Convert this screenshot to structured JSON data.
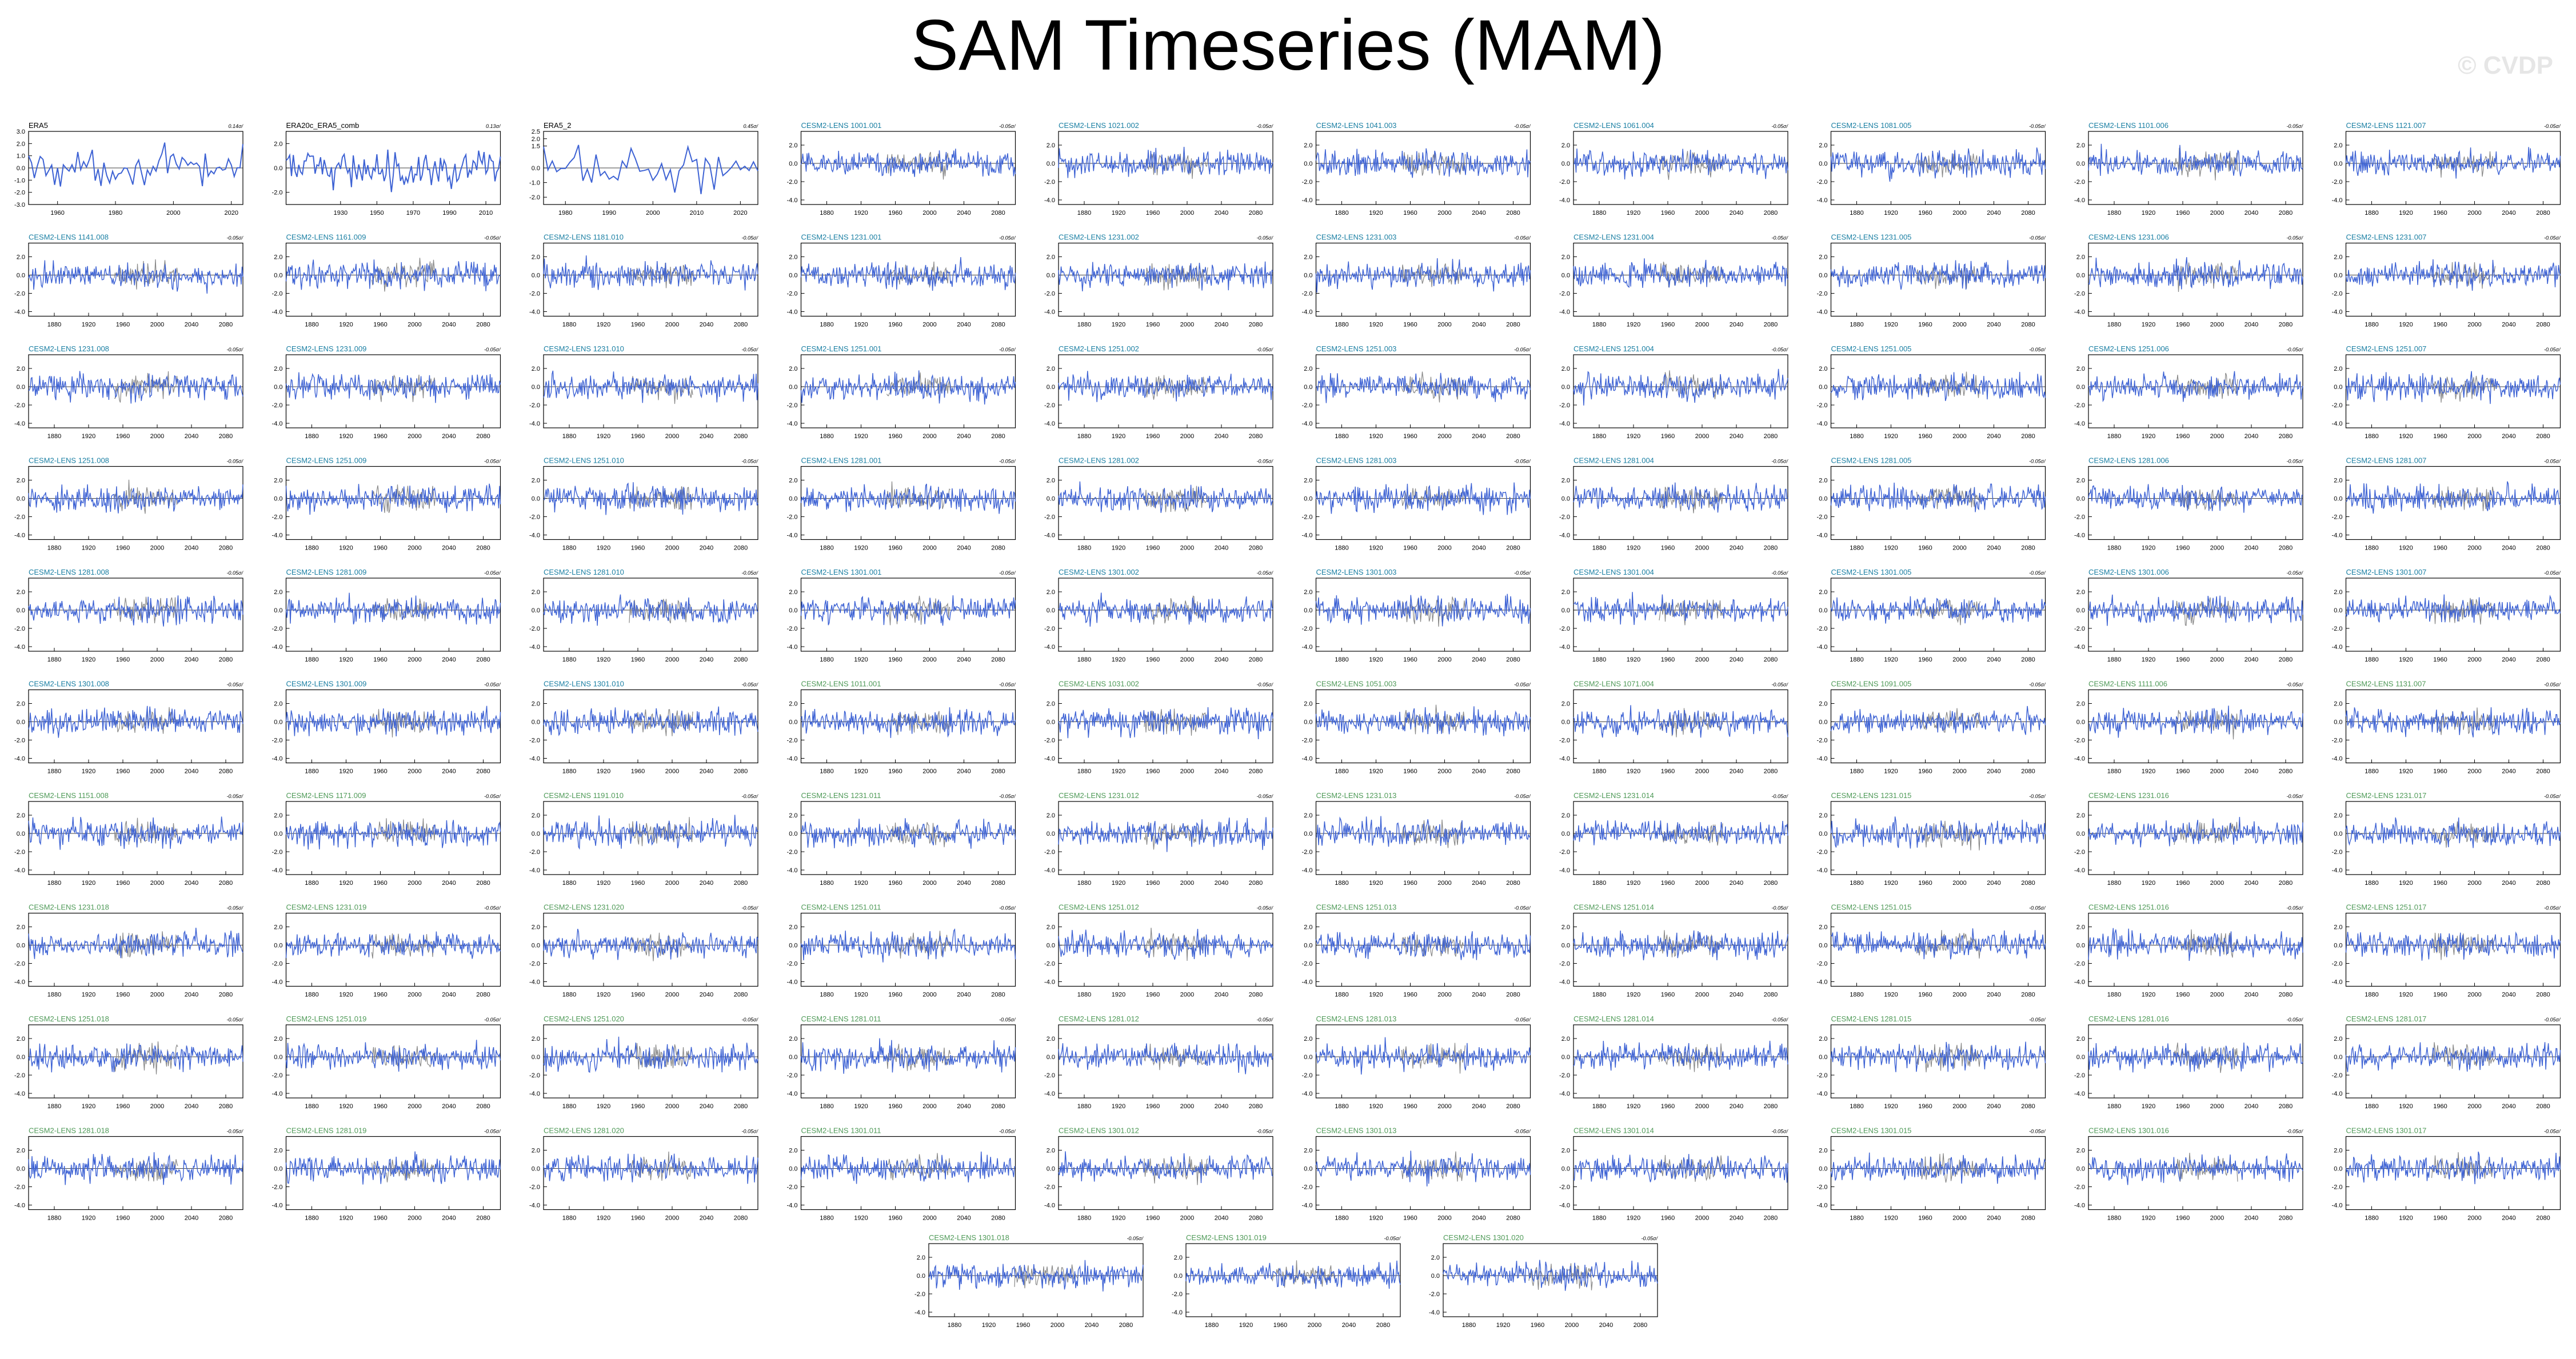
{
  "title": "SAM Timeseries (MAM)",
  "watermark": "© CVDP",
  "colors": {
    "model_line": "#3d62d4",
    "obs_line": "#3d62d4",
    "obs_overlay": "#888888",
    "label_teal": "#1a7fa3",
    "label_green": "#4f9a58",
    "label_black": "#000000"
  },
  "chart_data": {
    "type": "line",
    "note_units": "standardized SAM index",
    "panels": [
      {
        "name": "ERA5",
        "trend": "0.14σ/",
        "label_style": "black",
        "kind": "obs",
        "x_range": [
          1950,
          2024
        ],
        "y_ticks": [
          "3.0",
          "2.0",
          "1.0",
          "0.0",
          "-1.0",
          "-2.0",
          "-3.0"
        ],
        "x_ticks": [
          "1960",
          "1980",
          "2000",
          "2020"
        ],
        "ylim": [
          -3,
          3
        ]
      },
      {
        "name": "ERA20c_ERA5_comb",
        "trend": "0.13σ/",
        "label_style": "black",
        "kind": "obs",
        "x_range": [
          1900,
          2018
        ],
        "y_ticks": [
          "2.0",
          "0.0",
          "-2.0"
        ],
        "x_ticks": [
          "1930",
          "1950",
          "1970",
          "1990",
          "2010"
        ],
        "ylim": [
          -3,
          3
        ]
      },
      {
        "name": "ERA5_2",
        "trend": "0.45σ/",
        "label_style": "black",
        "kind": "obs",
        "x_range": [
          1975,
          2024
        ],
        "y_ticks": [
          "2.5",
          "2.0",
          "1.5",
          "0.0",
          "-1.0",
          "-2.0"
        ],
        "x_ticks": [
          "1980",
          "1990",
          "2000",
          "2010",
          "2020"
        ],
        "ylim": [
          -2.5,
          2.5
        ]
      },
      {
        "name": "CESM2-LENS 1001.001",
        "trend": "-0.05σ/",
        "label_style": "teal"
      },
      {
        "name": "CESM2-LENS 1021.002",
        "trend": "-0.05σ/",
        "label_style": "teal"
      },
      {
        "name": "CESM2-LENS 1041.003",
        "trend": "-0.05σ/",
        "label_style": "teal"
      },
      {
        "name": "CESM2-LENS 1061.004",
        "trend": "-0.05σ/",
        "label_style": "teal"
      },
      {
        "name": "CESM2-LENS 1081.005",
        "trend": "-0.05σ/",
        "label_style": "teal"
      },
      {
        "name": "CESM2-LENS 1101.006",
        "trend": "-0.05σ/",
        "label_style": "teal"
      },
      {
        "name": "CESM2-LENS 1121.007",
        "trend": "-0.05σ/",
        "label_style": "teal"
      },
      {
        "name": "CESM2-LENS 1141.008",
        "trend": "-0.05σ/",
        "label_style": "teal"
      },
      {
        "name": "CESM2-LENS 1161.009",
        "trend": "-0.05σ/",
        "label_style": "teal"
      },
      {
        "name": "CESM2-LENS 1181.010",
        "trend": "-0.05σ/",
        "label_style": "teal"
      },
      {
        "name": "CESM2-LENS 1231.001",
        "trend": "-0.05σ/",
        "label_style": "teal"
      },
      {
        "name": "CESM2-LENS 1231.002",
        "trend": "-0.05σ/",
        "label_style": "teal"
      },
      {
        "name": "CESM2-LENS 1231.003",
        "trend": "-0.05σ/",
        "label_style": "teal"
      },
      {
        "name": "CESM2-LENS 1231.004",
        "trend": "-0.05σ/",
        "label_style": "teal"
      },
      {
        "name": "CESM2-LENS 1231.005",
        "trend": "-0.05σ/",
        "label_style": "teal"
      },
      {
        "name": "CESM2-LENS 1231.006",
        "trend": "-0.05σ/",
        "label_style": "teal"
      },
      {
        "name": "CESM2-LENS 1231.007",
        "trend": "-0.05σ/",
        "label_style": "teal"
      },
      {
        "name": "CESM2-LENS 1231.008",
        "trend": "-0.05σ/",
        "label_style": "teal"
      },
      {
        "name": "CESM2-LENS 1231.009",
        "trend": "-0.05σ/",
        "label_style": "teal"
      },
      {
        "name": "CESM2-LENS 1231.010",
        "trend": "-0.05σ/",
        "label_style": "teal"
      },
      {
        "name": "CESM2-LENS 1251.001",
        "trend": "-0.05σ/",
        "label_style": "teal"
      },
      {
        "name": "CESM2-LENS 1251.002",
        "trend": "-0.05σ/",
        "label_style": "teal"
      },
      {
        "name": "CESM2-LENS 1251.003",
        "trend": "-0.05σ/",
        "label_style": "teal"
      },
      {
        "name": "CESM2-LENS 1251.004",
        "trend": "-0.05σ/",
        "label_style": "teal"
      },
      {
        "name": "CESM2-LENS 1251.005",
        "trend": "-0.05σ/",
        "label_style": "teal"
      },
      {
        "name": "CESM2-LENS 1251.006",
        "trend": "-0.05σ/",
        "label_style": "teal"
      },
      {
        "name": "CESM2-LENS 1251.007",
        "trend": "-0.05σ/",
        "label_style": "teal"
      },
      {
        "name": "CESM2-LENS 1251.008",
        "trend": "-0.05σ/",
        "label_style": "teal"
      },
      {
        "name": "CESM2-LENS 1251.009",
        "trend": "-0.05σ/",
        "label_style": "teal"
      },
      {
        "name": "CESM2-LENS 1251.010",
        "trend": "-0.05σ/",
        "label_style": "teal"
      },
      {
        "name": "CESM2-LENS 1281.001",
        "trend": "-0.05σ/",
        "label_style": "teal"
      },
      {
        "name": "CESM2-LENS 1281.002",
        "trend": "-0.05σ/",
        "label_style": "teal"
      },
      {
        "name": "CESM2-LENS 1281.003",
        "trend": "-0.05σ/",
        "label_style": "teal"
      },
      {
        "name": "CESM2-LENS 1281.004",
        "trend": "-0.05σ/",
        "label_style": "teal"
      },
      {
        "name": "CESM2-LENS 1281.005",
        "trend": "-0.05σ/",
        "label_style": "teal"
      },
      {
        "name": "CESM2-LENS 1281.006",
        "trend": "-0.05σ/",
        "label_style": "teal"
      },
      {
        "name": "CESM2-LENS 1281.007",
        "trend": "-0.05σ/",
        "label_style": "teal"
      },
      {
        "name": "CESM2-LENS 1281.008",
        "trend": "-0.05σ/",
        "label_style": "teal"
      },
      {
        "name": "CESM2-LENS 1281.009",
        "trend": "-0.05σ/",
        "label_style": "teal"
      },
      {
        "name": "CESM2-LENS 1281.010",
        "trend": "-0.05σ/",
        "label_style": "teal"
      },
      {
        "name": "CESM2-LENS 1301.001",
        "trend": "-0.05σ/",
        "label_style": "teal"
      },
      {
        "name": "CESM2-LENS 1301.002",
        "trend": "-0.05σ/",
        "label_style": "teal"
      },
      {
        "name": "CESM2-LENS 1301.003",
        "trend": "-0.05σ/",
        "label_style": "teal"
      },
      {
        "name": "CESM2-LENS 1301.004",
        "trend": "-0.05σ/",
        "label_style": "teal"
      },
      {
        "name": "CESM2-LENS 1301.005",
        "trend": "-0.05σ/",
        "label_style": "teal"
      },
      {
        "name": "CESM2-LENS 1301.006",
        "trend": "-0.05σ/",
        "label_style": "teal"
      },
      {
        "name": "CESM2-LENS 1301.007",
        "trend": "-0.05σ/",
        "label_style": "teal"
      },
      {
        "name": "CESM2-LENS 1301.008",
        "trend": "-0.05σ/",
        "label_style": "teal"
      },
      {
        "name": "CESM2-LENS 1301.009",
        "trend": "-0.05σ/",
        "label_style": "teal"
      },
      {
        "name": "CESM2-LENS 1301.010",
        "trend": "-0.05σ/",
        "label_style": "teal"
      },
      {
        "name": "CESM2-LENS 1011.001",
        "trend": "-0.05σ/",
        "label_style": "green"
      },
      {
        "name": "CESM2-LENS 1031.002",
        "trend": "-0.05σ/",
        "label_style": "green"
      },
      {
        "name": "CESM2-LENS 1051.003",
        "trend": "-0.05σ/",
        "label_style": "green"
      },
      {
        "name": "CESM2-LENS 1071.004",
        "trend": "-0.05σ/",
        "label_style": "green"
      },
      {
        "name": "CESM2-LENS 1091.005",
        "trend": "-0.05σ/",
        "label_style": "green"
      },
      {
        "name": "CESM2-LENS 1111.006",
        "trend": "-0.05σ/",
        "label_style": "green"
      },
      {
        "name": "CESM2-LENS 1131.007",
        "trend": "-0.05σ/",
        "label_style": "green"
      },
      {
        "name": "CESM2-LENS 1151.008",
        "trend": "-0.05σ/",
        "label_style": "green"
      },
      {
        "name": "CESM2-LENS 1171.009",
        "trend": "-0.05σ/",
        "label_style": "green"
      },
      {
        "name": "CESM2-LENS 1191.010",
        "trend": "-0.05σ/",
        "label_style": "green"
      },
      {
        "name": "CESM2-LENS 1231.011",
        "trend": "-0.05σ/",
        "label_style": "green"
      },
      {
        "name": "CESM2-LENS 1231.012",
        "trend": "-0.05σ/",
        "label_style": "green"
      },
      {
        "name": "CESM2-LENS 1231.013",
        "trend": "-0.05σ/",
        "label_style": "green"
      },
      {
        "name": "CESM2-LENS 1231.014",
        "trend": "-0.05σ/",
        "label_style": "green"
      },
      {
        "name": "CESM2-LENS 1231.015",
        "trend": "-0.05σ/",
        "label_style": "green"
      },
      {
        "name": "CESM2-LENS 1231.016",
        "trend": "-0.05σ/",
        "label_style": "green"
      },
      {
        "name": "CESM2-LENS 1231.017",
        "trend": "-0.05σ/",
        "label_style": "green"
      },
      {
        "name": "CESM2-LENS 1231.018",
        "trend": "-0.05σ/",
        "label_style": "green"
      },
      {
        "name": "CESM2-LENS 1231.019",
        "trend": "-0.05σ/",
        "label_style": "green"
      },
      {
        "name": "CESM2-LENS 1231.020",
        "trend": "-0.05σ/",
        "label_style": "green"
      },
      {
        "name": "CESM2-LENS 1251.011",
        "trend": "-0.05σ/",
        "label_style": "green"
      },
      {
        "name": "CESM2-LENS 1251.012",
        "trend": "-0.05σ/",
        "label_style": "green"
      },
      {
        "name": "CESM2-LENS 1251.013",
        "trend": "-0.05σ/",
        "label_style": "green"
      },
      {
        "name": "CESM2-LENS 1251.014",
        "trend": "-0.05σ/",
        "label_style": "green"
      },
      {
        "name": "CESM2-LENS 1251.015",
        "trend": "-0.05σ/",
        "label_style": "green"
      },
      {
        "name": "CESM2-LENS 1251.016",
        "trend": "-0.05σ/",
        "label_style": "green"
      },
      {
        "name": "CESM2-LENS 1251.017",
        "trend": "-0.05σ/",
        "label_style": "green"
      },
      {
        "name": "CESM2-LENS 1251.018",
        "trend": "-0.05σ/",
        "label_style": "green"
      },
      {
        "name": "CESM2-LENS 1251.019",
        "trend": "-0.05σ/",
        "label_style": "green"
      },
      {
        "name": "CESM2-LENS 1251.020",
        "trend": "-0.05σ/",
        "label_style": "green"
      },
      {
        "name": "CESM2-LENS 1281.011",
        "trend": "-0.05σ/",
        "label_style": "green"
      },
      {
        "name": "CESM2-LENS 1281.012",
        "trend": "-0.05σ/",
        "label_style": "green"
      },
      {
        "name": "CESM2-LENS 1281.013",
        "trend": "-0.05σ/",
        "label_style": "green"
      },
      {
        "name": "CESM2-LENS 1281.014",
        "trend": "-0.05σ/",
        "label_style": "green"
      },
      {
        "name": "CESM2-LENS 1281.015",
        "trend": "-0.05σ/",
        "label_style": "green"
      },
      {
        "name": "CESM2-LENS 1281.016",
        "trend": "-0.05σ/",
        "label_style": "green"
      },
      {
        "name": "CESM2-LENS 1281.017",
        "trend": "-0.05σ/",
        "label_style": "green"
      },
      {
        "name": "CESM2-LENS 1281.018",
        "trend": "-0.05σ/",
        "label_style": "green"
      },
      {
        "name": "CESM2-LENS 1281.019",
        "trend": "-0.05σ/",
        "label_style": "green"
      },
      {
        "name": "CESM2-LENS 1281.020",
        "trend": "-0.05σ/",
        "label_style": "green"
      },
      {
        "name": "CESM2-LENS 1301.011",
        "trend": "-0.05σ/",
        "label_style": "green"
      },
      {
        "name": "CESM2-LENS 1301.012",
        "trend": "-0.05σ/",
        "label_style": "green"
      },
      {
        "name": "CESM2-LENS 1301.013",
        "trend": "-0.05σ/",
        "label_style": "green"
      },
      {
        "name": "CESM2-LENS 1301.014",
        "trend": "-0.05σ/",
        "label_style": "green"
      },
      {
        "name": "CESM2-LENS 1301.015",
        "trend": "-0.05σ/",
        "label_style": "green"
      },
      {
        "name": "CESM2-LENS 1301.016",
        "trend": "-0.05σ/",
        "label_style": "green"
      },
      {
        "name": "CESM2-LENS 1301.017",
        "trend": "-0.05σ/",
        "label_style": "green"
      },
      {
        "name": "CESM2-LENS 1301.018",
        "trend": "-0.05σ/",
        "label_style": "green"
      },
      {
        "name": "CESM2-LENS 1301.019",
        "trend": "-0.05σ/",
        "label_style": "green"
      },
      {
        "name": "CESM2-LENS 1301.020",
        "trend": "-0.05σ/",
        "label_style": "green"
      }
    ],
    "model_defaults": {
      "x_range": [
        1850,
        2100
      ],
      "x_ticks": [
        "1880",
        "1920",
        "1960",
        "2000",
        "2040",
        "2080"
      ],
      "y_ticks": [
        "2.0",
        "0.0",
        "-2.0",
        "-4.0"
      ],
      "ylim": [
        -4.5,
        3.5
      ],
      "has_obs_overlay": true,
      "obs_overlay_range": [
        1950,
        2024
      ]
    }
  }
}
